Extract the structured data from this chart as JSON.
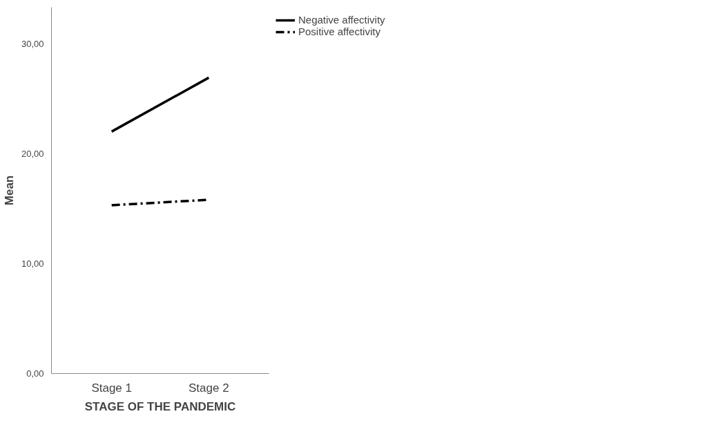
{
  "chart_data": {
    "type": "line",
    "xlabel": "STAGE OF THE PANDEMIC",
    "ylabel": "Mean",
    "categories": [
      "Stage 1",
      "Stage 2"
    ],
    "series": [
      {
        "name": "Negative affectivity",
        "color": "#000000",
        "values": [
          22.0,
          26.9
        ],
        "line_style": "solid"
      },
      {
        "name": "Positive affectivity",
        "color": "#000000",
        "values": [
          15.3,
          15.8
        ],
        "line_style": "dashed"
      }
    ],
    "ylim": [
      0,
      33.3
    ],
    "yticks": [
      {
        "value": 0,
        "label": "0,00"
      },
      {
        "value": 10,
        "label": "10,00"
      },
      {
        "value": 20,
        "label": "20,00"
      },
      {
        "value": 30,
        "label": "30,00"
      }
    ],
    "grid": false,
    "legend": "top right",
    "marker": "none"
  }
}
